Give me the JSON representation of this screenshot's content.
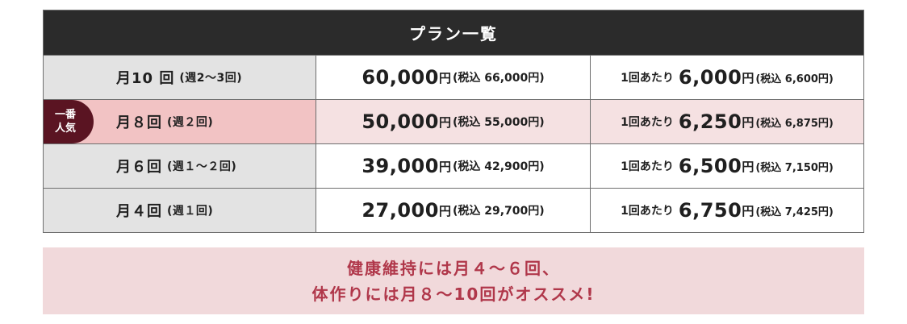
{
  "table": {
    "header": "プラン一覧",
    "badge": {
      "line1": "一番",
      "line2": "人気"
    },
    "rows": [
      {
        "name": "月10 回",
        "sub": "(週2〜3回)",
        "price": "60,000",
        "price_unit": "円",
        "price_tax": "(税込 66,000円)",
        "per_label": "1回あたり",
        "per_price": "6,000",
        "per_unit": "円",
        "per_tax": "(税込 6,600円)"
      },
      {
        "name": "月８回",
        "sub": "(週２回)",
        "price": "50,000",
        "price_unit": "円",
        "price_tax": "(税込 55,000円)",
        "per_label": "1回あたり",
        "per_price": "6,250",
        "per_unit": "円",
        "per_tax": "(税込 6,875円)"
      },
      {
        "name": "月６回",
        "sub": "(週１〜２回)",
        "price": "39,000",
        "price_unit": "円",
        "price_tax": "(税込 42,900円)",
        "per_label": "1回あたり",
        "per_price": "6,500",
        "per_unit": "円",
        "per_tax": "(税込 7,150円)"
      },
      {
        "name": "月４回",
        "sub": "(週１回)",
        "price": "27,000",
        "price_unit": "円",
        "price_tax": "(税込 29,700円)",
        "per_label": "1回あたり",
        "per_price": "6,750",
        "per_unit": "円",
        "per_tax": "(税込 7,425円)"
      }
    ]
  },
  "recommend": {
    "line1": "健康維持には月４〜６回、",
    "line2": "体作りには月８〜10回がオススメ!"
  },
  "colors": {
    "header_bg": "#2b2b2b",
    "badge_bg": "#5a1422",
    "popular_name_bg": "#f2c3c4",
    "popular_row_bg": "#f5e1e2",
    "recommend_bg": "#f1d9db",
    "recommend_text": "#b0374a"
  }
}
